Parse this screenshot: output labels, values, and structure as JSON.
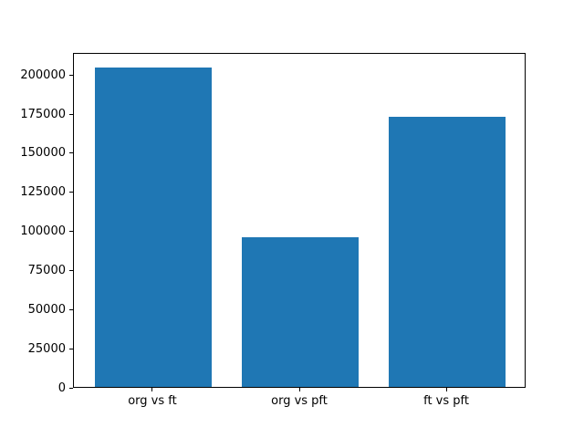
{
  "chart_data": {
    "type": "bar",
    "categories": [
      "org vs ft",
      "org vs pft",
      "ft vs pft"
    ],
    "values": [
      204000,
      95500,
      172500
    ],
    "title": "",
    "xlabel": "",
    "ylabel": "",
    "ylim": [
      0,
      214200
    ],
    "yticks": [
      0,
      25000,
      50000,
      75000,
      100000,
      125000,
      150000,
      175000,
      200000
    ],
    "bar_color": "#1f77b4",
    "axis_color": "#000000",
    "background_color": "#ffffff",
    "grid": false,
    "legend": null
  }
}
